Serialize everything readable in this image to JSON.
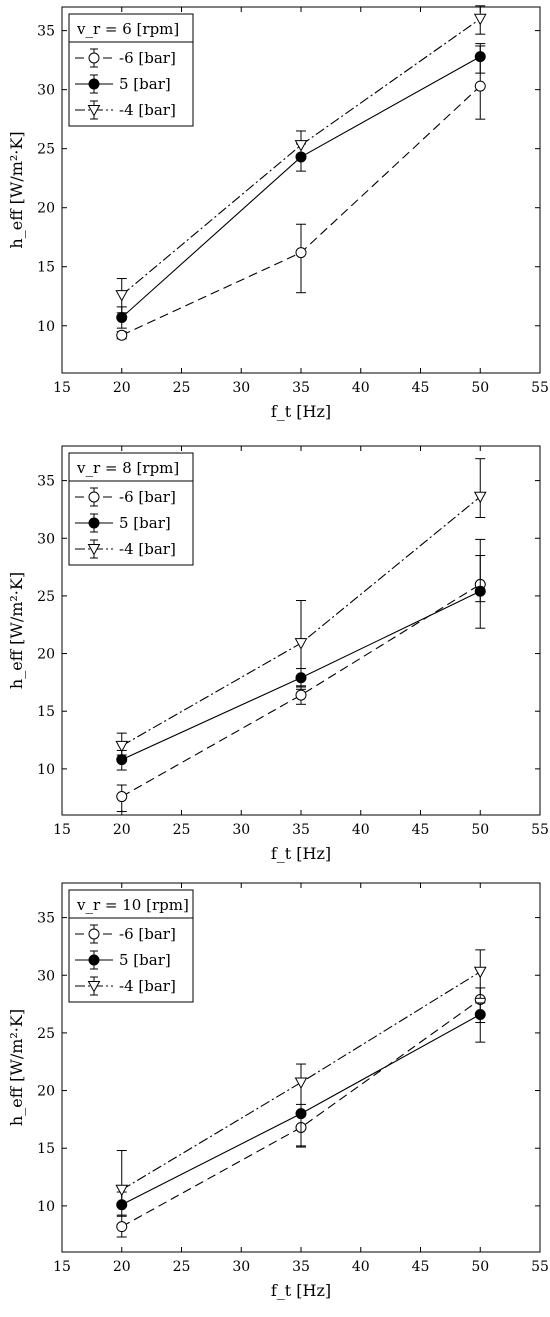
{
  "chart_data": [
    {
      "type": "line",
      "title": "",
      "condition_label": "v_r = 6 [rpm]",
      "xlabel": "f_t [Hz]",
      "ylabel": "h_eff [W/m²·K]",
      "xlim": [
        15,
        55
      ],
      "ylim": [
        6,
        37
      ],
      "xticks": [
        15,
        20,
        25,
        30,
        35,
        40,
        45,
        50,
        55
      ],
      "yticks": [
        10,
        15,
        20,
        25,
        30,
        35
      ],
      "grid": false,
      "legend_position": "top-left",
      "x": [
        20,
        35,
        50
      ],
      "series": [
        {
          "name": "-6 [bar]",
          "values": [
            9.2,
            16.2,
            30.3
          ],
          "err_low": [
            0.3,
            3.4,
            2.8
          ],
          "err_high": [
            0.3,
            2.4,
            3.4
          ],
          "marker": "circle-open",
          "line": "dashed"
        },
        {
          "name": "5 [bar]",
          "values": [
            10.7,
            24.3,
            32.8
          ],
          "err_low": [
            0.9,
            1.2,
            1.4
          ],
          "err_high": [
            0.9,
            1.1,
            1.1
          ],
          "marker": "circle-filled",
          "line": "solid"
        },
        {
          "name": "-4 [bar]",
          "values": [
            12.6,
            25.3,
            36.0
          ],
          "err_low": [
            1.5,
            1.0,
            1.3
          ],
          "err_high": [
            1.4,
            1.2,
            1.1
          ],
          "marker": "triangle-down-open",
          "line": "dashdot"
        }
      ]
    },
    {
      "type": "line",
      "title": "",
      "condition_label": "v_r = 8 [rpm]",
      "xlabel": "f_t [Hz]",
      "ylabel": "h_eff [W/m²·K]",
      "xlim": [
        15,
        55
      ],
      "ylim": [
        6,
        38
      ],
      "xticks": [
        15,
        20,
        25,
        30,
        35,
        40,
        45,
        50,
        55
      ],
      "yticks": [
        10,
        15,
        20,
        25,
        30,
        35
      ],
      "grid": false,
      "legend_position": "top-left",
      "x": [
        20,
        35,
        50
      ],
      "series": [
        {
          "name": "-6 [bar]",
          "values": [
            7.6,
            16.4,
            26.0
          ],
          "err_low": [
            1.3,
            0.8,
            1.5
          ],
          "err_high": [
            1.0,
            0.8,
            2.5
          ],
          "marker": "circle-open",
          "line": "dashed"
        },
        {
          "name": "5 [bar]",
          "values": [
            10.8,
            17.9,
            25.4
          ],
          "err_low": [
            0.9,
            1.0,
            3.2
          ],
          "err_high": [
            0.8,
            0.8,
            4.5
          ],
          "marker": "circle-filled",
          "line": "solid"
        },
        {
          "name": "-4 [bar]",
          "values": [
            12.0,
            20.9,
            33.6
          ],
          "err_low": [
            0.8,
            3.8,
            1.8
          ],
          "err_high": [
            1.1,
            3.7,
            3.3
          ],
          "marker": "triangle-down-open",
          "line": "dashdot"
        }
      ]
    },
    {
      "type": "line",
      "title": "",
      "condition_label": "v_r = 10 [rpm]",
      "xlabel": "f_t [Hz]",
      "ylabel": "h_eff [W/m²·K]",
      "xlim": [
        15,
        55
      ],
      "ylim": [
        6,
        38
      ],
      "xticks": [
        15,
        20,
        25,
        30,
        35,
        40,
        45,
        50,
        55
      ],
      "yticks": [
        10,
        15,
        20,
        25,
        30,
        35
      ],
      "grid": false,
      "legend_position": "top-left",
      "x": [
        20,
        35,
        50
      ],
      "series": [
        {
          "name": "-6 [bar]",
          "values": [
            8.2,
            16.8,
            27.9
          ],
          "err_low": [
            0.9,
            1.6,
            2.0
          ],
          "err_high": [
            1.0,
            1.0,
            1.0
          ],
          "marker": "circle-open",
          "line": "dashed"
        },
        {
          "name": "5 [bar]",
          "values": [
            10.1,
            18.0,
            26.6
          ],
          "err_low": [
            1.0,
            2.9,
            2.4
          ],
          "err_high": [
            1.1,
            0.8,
            1.0
          ],
          "marker": "circle-filled",
          "line": "solid"
        },
        {
          "name": "-4 [bar]",
          "values": [
            11.4,
            20.7,
            30.3
          ],
          "err_low": [
            1.2,
            2.6,
            2.3
          ],
          "err_high": [
            3.4,
            1.6,
            1.9
          ],
          "marker": "triangle-down-open",
          "line": "dashdot"
        }
      ]
    }
  ]
}
